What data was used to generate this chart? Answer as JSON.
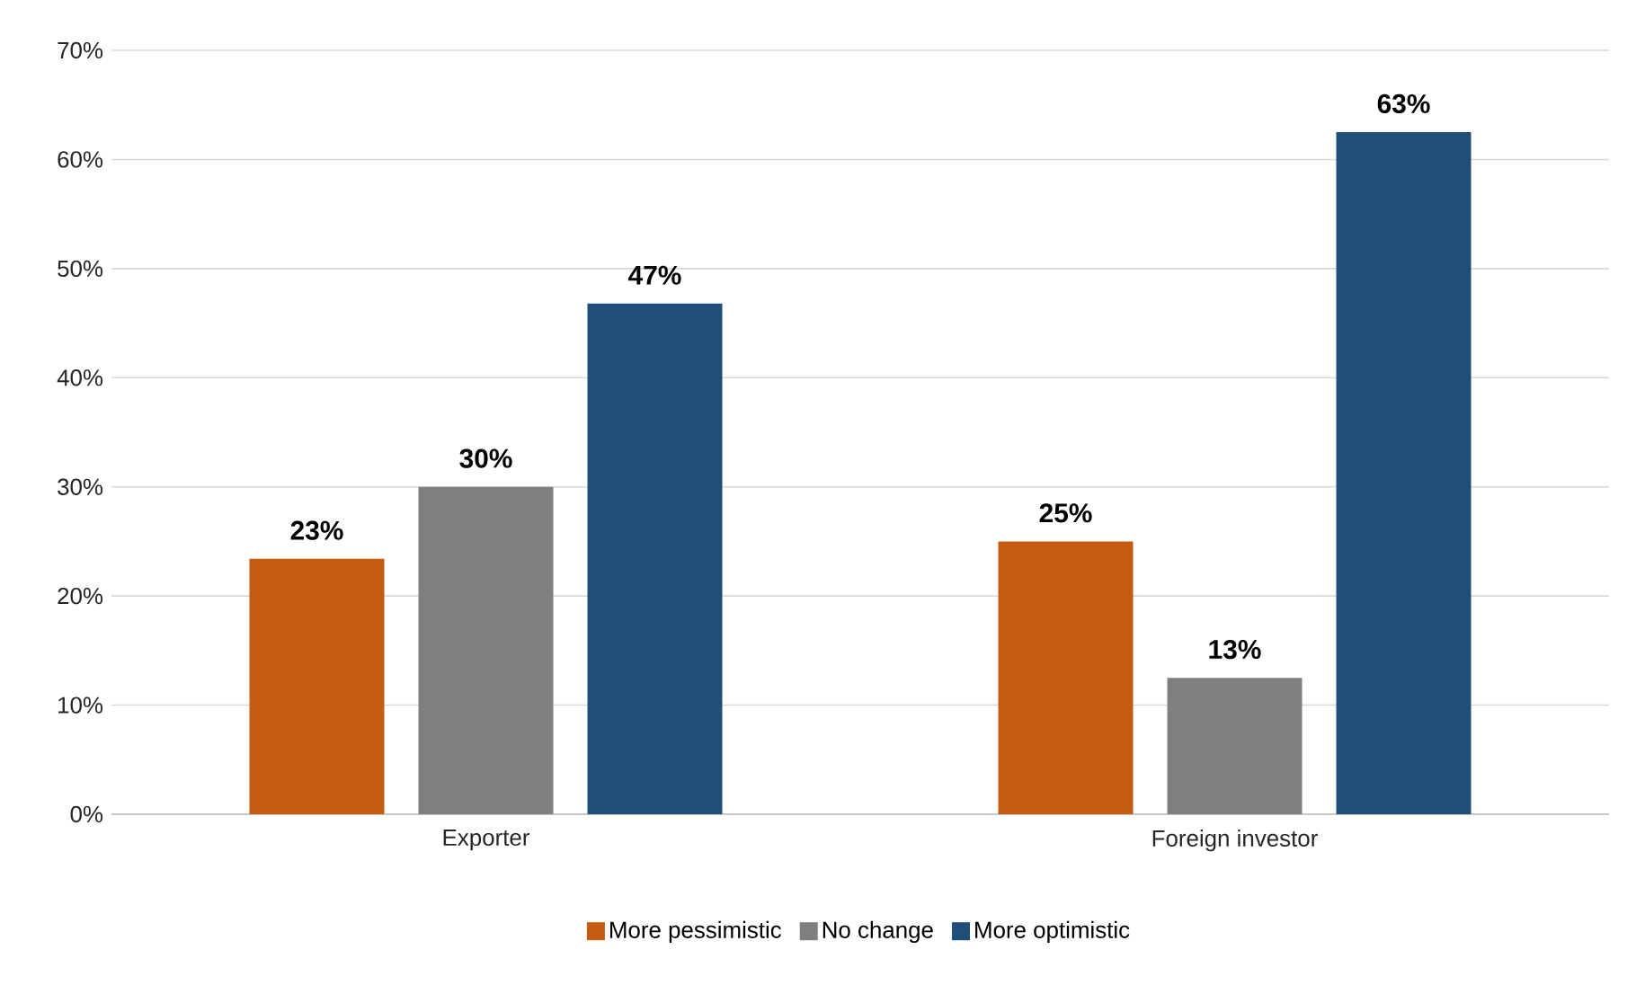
{
  "chart_data": {
    "type": "bar",
    "categories": [
      "Exporter",
      "Foreign investor"
    ],
    "series": [
      {
        "name": "More pessimistic",
        "color": "#c55a11",
        "values": [
          23.4,
          25
        ],
        "value_labels": [
          "23%",
          "25%"
        ]
      },
      {
        "name": "No change",
        "color": "#7f7f7f",
        "values": [
          30,
          12.5
        ],
        "value_labels": [
          "30%",
          "13%"
        ]
      },
      {
        "name": "More optimistic",
        "color": "#1f4e79",
        "values": [
          46.8,
          62.5
        ],
        "value_labels": [
          "47%",
          "63%"
        ]
      }
    ],
    "ylim": [
      0,
      70
    ],
    "yticks": [
      {
        "value": 0,
        "label": "0%"
      },
      {
        "value": 10,
        "label": "10%"
      },
      {
        "value": 20,
        "label": "20%"
      },
      {
        "value": 30,
        "label": "30%"
      },
      {
        "value": 40,
        "label": "40%"
      },
      {
        "value": 50,
        "label": "50%"
      },
      {
        "value": 60,
        "label": "60%"
      },
      {
        "value": 70,
        "label": "70%"
      }
    ],
    "grid": "y",
    "legend": "bottom"
  }
}
